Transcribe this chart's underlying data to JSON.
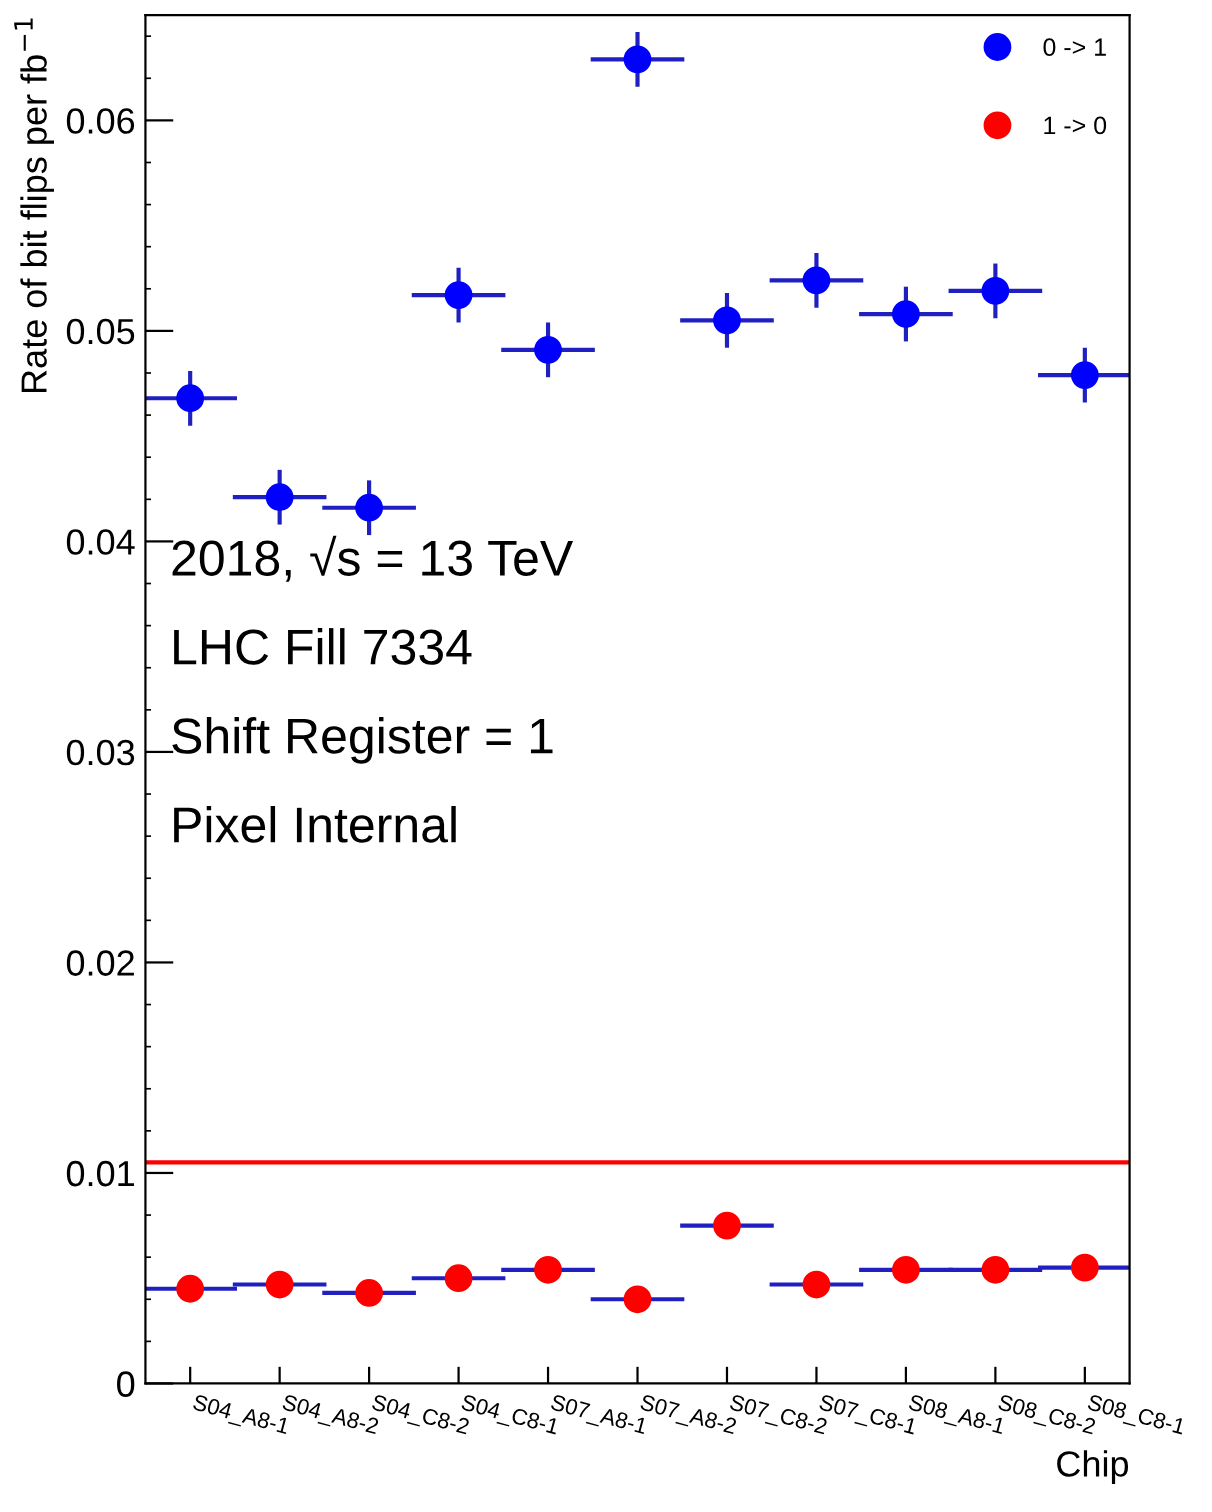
{
  "chart_data": {
    "type": "scatter",
    "xlabel": "Chip",
    "ylabel": "Rate of bit flips per fb$^{−1}$",
    "categories": [
      "S04_A8-1",
      "S04_A8-2",
      "S04_C8-2",
      "S04_C8-1",
      "S07_A8-1",
      "S07_A8-2",
      "S07_C8-2",
      "S07_C8-1",
      "S08_A8-1",
      "S08_C8-2",
      "S08_C8-1"
    ],
    "series": [
      {
        "name": "0 -> 1",
        "color": "#0000ff",
        "values": [
          0.0468,
          0.0421,
          0.0416,
          0.0517,
          0.0491,
          0.0629,
          0.0505,
          0.0524,
          0.0508,
          0.0519,
          0.0479
        ],
        "errors": [
          0.0013,
          0.0013,
          0.0013,
          0.0013,
          0.0013,
          0.0013,
          0.0013,
          0.0013,
          0.0013,
          0.0013,
          0.0013
        ]
      },
      {
        "name": "1 -> 0",
        "color": "#ff0000",
        "values": [
          0.0045,
          0.0047,
          0.0043,
          0.005,
          0.0054,
          0.004,
          0.0075,
          0.0047,
          0.0054,
          0.0054,
          0.0055
        ]
      }
    ],
    "ylim": [
      0,
      0.065
    ],
    "yticks": [
      0,
      0.01,
      0.02,
      0.03,
      0.04,
      0.05,
      0.06
    ],
    "ref_lines": [
      {
        "axis": "y",
        "value": 0.0105,
        "color": "#ff0000"
      }
    ],
    "annotations": [
      "2018, √s = 13 TeV",
      "LHC Fill 7334",
      "Shift Register = 1",
      "Pixel Internal"
    ],
    "legend": "top right",
    "marker": "circle",
    "grid": false
  }
}
